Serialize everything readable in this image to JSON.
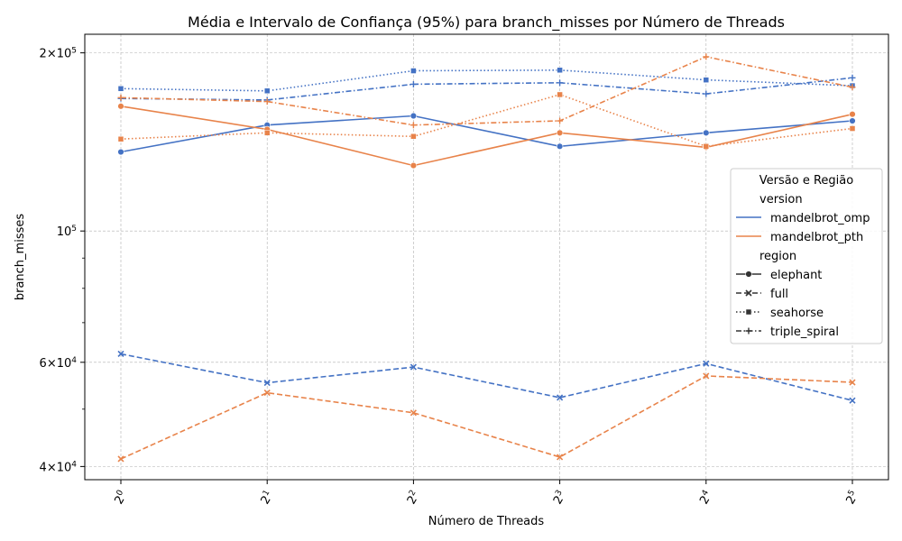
{
  "chart_data": {
    "type": "line",
    "title": "Média e Intervalo de Confiança (95%) para branch_misses por Número de Threads",
    "xlabel": "Número de Threads",
    "ylabel": "branch_misses",
    "x": [
      1,
      2,
      4,
      8,
      16,
      32
    ],
    "x_tick_labels": [
      {
        "base": "2",
        "exp": "0"
      },
      {
        "base": "2",
        "exp": "1"
      },
      {
        "base": "2",
        "exp": "2"
      },
      {
        "base": "2",
        "exp": "3"
      },
      {
        "base": "2",
        "exp": "4"
      },
      {
        "base": "2",
        "exp": "5"
      }
    ],
    "x_scale": "log2",
    "y_scale": "log10",
    "ylim": [
      38000,
      215000
    ],
    "y_tick_labels": [
      {
        "value": 40000,
        "mant": "4",
        "base": "10",
        "exp": "4"
      },
      {
        "value": 60000,
        "mant": "6",
        "base": "10",
        "exp": "4"
      },
      {
        "value": 100000,
        "mant": "",
        "base": "10",
        "exp": "5"
      },
      {
        "value": 200000,
        "mant": "2",
        "base": "10",
        "exp": "5"
      }
    ],
    "y_minor_ticks": [
      50000,
      70000,
      80000,
      90000
    ],
    "grid": true,
    "legend": {
      "title": "Versão e Região",
      "placement": "center-right",
      "hue_title": "version",
      "style_title": "region",
      "versions": [
        {
          "name": "mandelbrot_omp",
          "color": "#4472c4"
        },
        {
          "name": "mandelbrot_pth",
          "color": "#e8834a"
        }
      ],
      "regions": [
        {
          "name": "elephant",
          "marker": "circle",
          "dash": "solid"
        },
        {
          "name": "full",
          "marker": "x",
          "dash": "dashed"
        },
        {
          "name": "seahorse",
          "marker": "square",
          "dash": "dotted"
        },
        {
          "name": "triple_spiral",
          "marker": "plus",
          "dash": "dashdot"
        }
      ]
    },
    "series": [
      {
        "version": "mandelbrot_omp",
        "region": "elephant",
        "values": [
          136000,
          151000,
          156500,
          139000,
          146500,
          153500
        ]
      },
      {
        "version": "mandelbrot_omp",
        "region": "full",
        "values": [
          62000,
          55400,
          58900,
          52300,
          59700,
          51700
        ]
      },
      {
        "version": "mandelbrot_omp",
        "region": "seahorse",
        "values": [
          174000,
          172500,
          186500,
          187000,
          180000,
          176000
        ]
      },
      {
        "version": "mandelbrot_omp",
        "region": "triple_spiral",
        "values": [
          167500,
          166500,
          177000,
          178000,
          170500,
          181500
        ]
      },
      {
        "version": "mandelbrot_pth",
        "region": "elephant",
        "values": [
          162500,
          148500,
          129000,
          146500,
          138500,
          157500
        ]
      },
      {
        "version": "mandelbrot_pth",
        "region": "full",
        "values": [
          41200,
          53300,
          49300,
          41500,
          56900,
          55500
        ]
      },
      {
        "version": "mandelbrot_pth",
        "region": "seahorse",
        "values": [
          143000,
          146500,
          144500,
          170000,
          139000,
          149000
        ]
      },
      {
        "version": "mandelbrot_pth",
        "region": "triple_spiral",
        "values": [
          168000,
          165500,
          151000,
          153500,
          197000,
          175000
        ]
      }
    ]
  }
}
